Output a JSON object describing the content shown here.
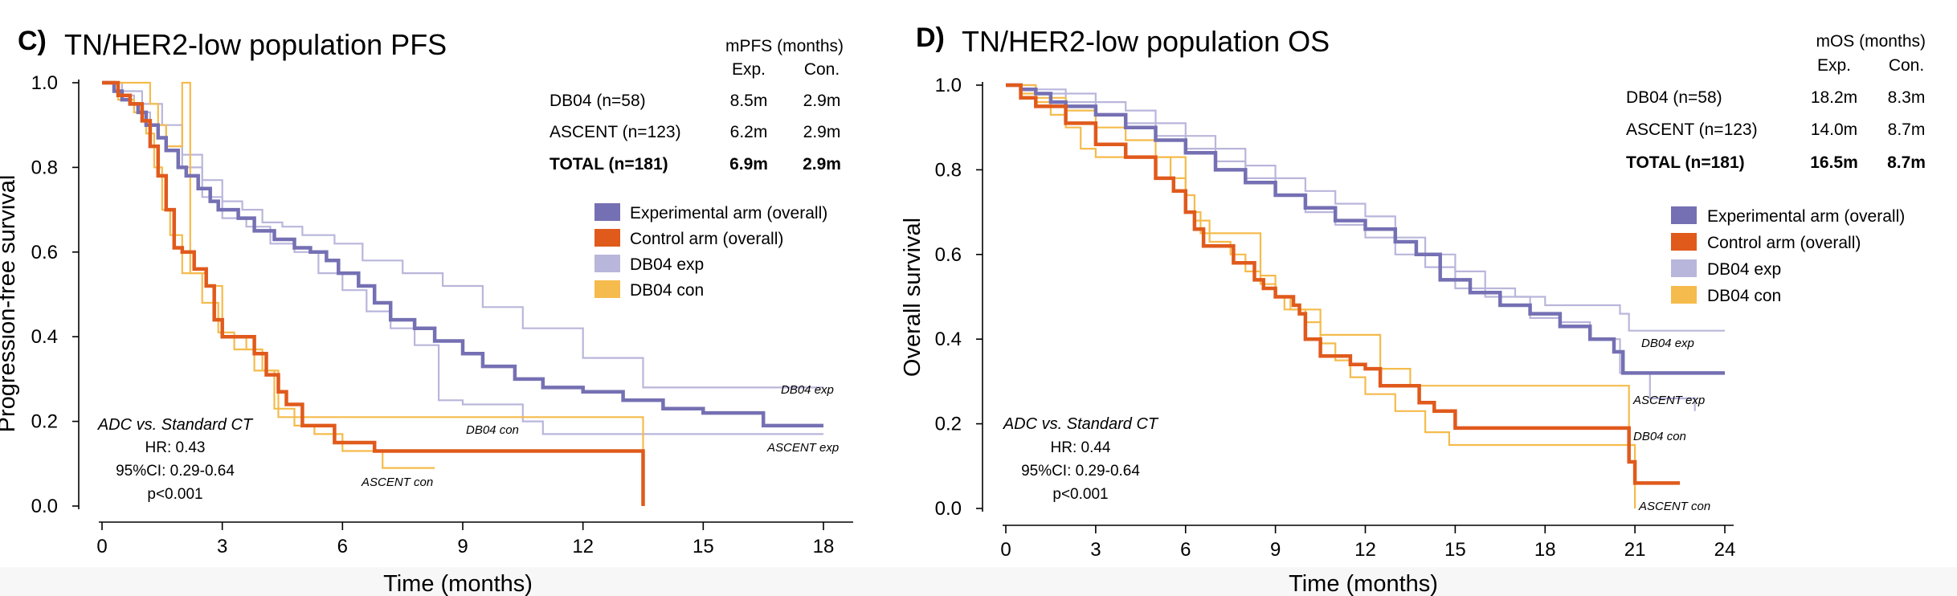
{
  "panels": [
    {
      "letter": "C)",
      "title": "TN/HER2-low population PFS",
      "table": {
        "title": "mPFS (months)",
        "col_exp": "Exp.",
        "col_con": "Con.",
        "rows": [
          {
            "label": "DB04 (n=58)",
            "exp": "8.5m",
            "con": "2.9m"
          },
          {
            "label": "ASCENT (n=123)",
            "exp": "6.2m",
            "con": "2.9m"
          },
          {
            "label": "TOTAL (n=181)",
            "exp": "6.9m",
            "con": "2.9m"
          }
        ]
      }
    },
    {
      "letter": "D)",
      "title": "TN/HER2-low population OS",
      "table": {
        "title": "mOS (months)",
        "col_exp": "Exp.",
        "col_con": "Con.",
        "rows": [
          {
            "label": "DB04 (n=58)",
            "exp": "18.2m",
            "con": "8.3m"
          },
          {
            "label": "ASCENT (n=123)",
            "exp": "14.0m",
            "con": "8.7m"
          },
          {
            "label": "TOTAL (n=181)",
            "exp": "16.5m",
            "con": "8.7m"
          }
        ]
      }
    }
  ],
  "colors": {
    "experimental_overall": "#7570b3",
    "control_overall": "#e05a1c",
    "experimental_arms": "#b9b6db",
    "control_arms": "#f5bb4c",
    "axis": "#000000"
  },
  "chart_data": [
    {
      "type": "line",
      "title": "TN/HER2-low population PFS",
      "xlabel": "Time  (months)",
      "ylabel": "Progression-free survival",
      "xlim": [
        0,
        18
      ],
      "ylim": [
        0,
        1.0
      ],
      "xticks": [
        0,
        3,
        6,
        9,
        12,
        15,
        18
      ],
      "yticks": [
        "0.0",
        "0.2",
        "0.4",
        "0.6",
        "0.8",
        "1.0"
      ],
      "grid": false,
      "legend_position": "top-right",
      "annotation": {
        "comparison": "ADC vs. Standard CT",
        "hr": "HR: 0.43",
        "ci": "95%CI: 0.29-0.64",
        "p": "p<0.001"
      },
      "series": [
        {
          "name": "Experimental arm (overall)",
          "key": "experimental_overall",
          "x": [
            0,
            0.3,
            0.5,
            0.7,
            0.9,
            1.1,
            1.4,
            1.6,
            1.9,
            2.1,
            2.4,
            2.7,
            2.9,
            3.4,
            3.8,
            4.3,
            4.8,
            5.2,
            5.6,
            5.9,
            6.4,
            6.8,
            7.2,
            7.8,
            8.3,
            9.0,
            9.5,
            10.3,
            11.0,
            12.0,
            13.0,
            14.0,
            15.0,
            16.5,
            18.0
          ],
          "y": [
            1.0,
            0.98,
            0.96,
            0.95,
            0.93,
            0.9,
            0.87,
            0.84,
            0.8,
            0.78,
            0.75,
            0.72,
            0.7,
            0.68,
            0.65,
            0.63,
            0.61,
            0.6,
            0.58,
            0.55,
            0.52,
            0.48,
            0.44,
            0.42,
            0.39,
            0.36,
            0.33,
            0.3,
            0.28,
            0.27,
            0.25,
            0.23,
            0.22,
            0.19,
            0.19
          ]
        },
        {
          "name": "Control arm (overall)",
          "key": "control_overall",
          "x": [
            0,
            0.4,
            0.7,
            1.0,
            1.2,
            1.4,
            1.6,
            1.8,
            2.0,
            2.3,
            2.6,
            2.8,
            3.0,
            3.2,
            3.8,
            4.1,
            4.4,
            4.6,
            5.0,
            5.8,
            6.8,
            8.0,
            11.0,
            13.5,
            13.5
          ],
          "y": [
            1.0,
            0.97,
            0.95,
            0.91,
            0.85,
            0.78,
            0.7,
            0.61,
            0.6,
            0.56,
            0.52,
            0.44,
            0.4,
            0.4,
            0.36,
            0.31,
            0.27,
            0.24,
            0.19,
            0.15,
            0.13,
            0.13,
            0.13,
            0.12,
            0.0
          ]
        },
        {
          "name": "DB04 exp",
          "key": "experimental_arms",
          "x": [
            0,
            0.5,
            1.0,
            1.5,
            2.0,
            2.5,
            3.0,
            3.5,
            4.0,
            4.5,
            5.0,
            5.8,
            6.5,
            7.5,
            8.5,
            9.5,
            10.5,
            12.0,
            13.5,
            14.5,
            18.0
          ],
          "y": [
            1.0,
            0.98,
            0.95,
            0.9,
            0.83,
            0.77,
            0.72,
            0.7,
            0.67,
            0.66,
            0.64,
            0.62,
            0.58,
            0.55,
            0.52,
            0.47,
            0.42,
            0.35,
            0.28,
            0.28,
            0.28
          ]
        },
        {
          "name": "ASCENT exp",
          "key": "experimental_arms",
          "x": [
            0,
            0.4,
            0.8,
            1.2,
            1.6,
            2.0,
            2.5,
            3.0,
            3.6,
            4.2,
            4.8,
            5.4,
            6.0,
            6.6,
            7.2,
            7.8,
            8.4,
            9.0,
            10.5,
            11.0,
            18.0
          ],
          "y": [
            1.0,
            0.97,
            0.93,
            0.9,
            0.85,
            0.8,
            0.73,
            0.68,
            0.66,
            0.62,
            0.6,
            0.55,
            0.51,
            0.46,
            0.42,
            0.38,
            0.25,
            0.24,
            0.2,
            0.17,
            0.17
          ]
        },
        {
          "name": "DB04 con",
          "key": "control_arms",
          "x": [
            0,
            0.6,
            1.0,
            1.2,
            1.4,
            1.6,
            2.0,
            2.2,
            2.6,
            3.0,
            3.6,
            4.0,
            4.4,
            5.0,
            6.0,
            9.0,
            13.5,
            13.5
          ],
          "y": [
            1.0,
            1.0,
            1.0,
            0.95,
            0.9,
            0.85,
            1.0,
            0.55,
            0.52,
            0.4,
            0.37,
            0.32,
            0.21,
            0.21,
            0.21,
            0.21,
            0.21,
            0.0
          ]
        },
        {
          "name": "ASCENT con",
          "key": "control_arms",
          "x": [
            0,
            0.4,
            0.8,
            1.1,
            1.3,
            1.5,
            1.7,
            2.0,
            2.5,
            2.9,
            3.3,
            3.8,
            4.3,
            4.8,
            5.3,
            6.0,
            7.0,
            8.3
          ],
          "y": [
            1.0,
            0.96,
            0.93,
            0.88,
            0.8,
            0.7,
            0.64,
            0.55,
            0.48,
            0.41,
            0.37,
            0.32,
            0.23,
            0.19,
            0.17,
            0.13,
            0.09,
            0.09
          ]
        }
      ]
    },
    {
      "type": "line",
      "title": "TN/HER2-low population OS",
      "xlabel": "Time  (months)",
      "ylabel": "Overall survival",
      "xlim": [
        0,
        24
      ],
      "ylim": [
        0,
        1.0
      ],
      "xticks": [
        0,
        3,
        6,
        9,
        12,
        15,
        18,
        21,
        24
      ],
      "yticks": [
        "0.0",
        "0.2",
        "0.4",
        "0.6",
        "0.8",
        "1.0"
      ],
      "grid": false,
      "legend_position": "top-right",
      "annotation": {
        "comparison": "ADC vs. Standard CT",
        "hr": "HR: 0.44",
        "ci": "95%CI: 0.29-0.64",
        "p": "p<0.001"
      },
      "series": [
        {
          "name": "Experimental arm (overall)",
          "key": "experimental_overall",
          "x": [
            0,
            0.5,
            1.0,
            1.5,
            2.0,
            3.0,
            4.0,
            5.0,
            6.0,
            7.0,
            8.0,
            9.0,
            10.0,
            11.0,
            12.0,
            13.0,
            13.7,
            14.5,
            15.5,
            16.5,
            17.5,
            18.5,
            19.5,
            20.3,
            20.6,
            24.0
          ],
          "y": [
            1.0,
            0.99,
            0.98,
            0.96,
            0.95,
            0.93,
            0.9,
            0.87,
            0.84,
            0.8,
            0.77,
            0.74,
            0.71,
            0.68,
            0.66,
            0.63,
            0.6,
            0.54,
            0.51,
            0.48,
            0.46,
            0.43,
            0.4,
            0.37,
            0.32,
            0.32
          ]
        },
        {
          "name": "Control arm (overall)",
          "key": "control_overall",
          "x": [
            0,
            0.5,
            1.0,
            2.0,
            3.0,
            4.0,
            5.0,
            5.6,
            6.0,
            6.3,
            6.6,
            7.2,
            7.6,
            8.0,
            8.3,
            8.6,
            9.0,
            9.6,
            9.8,
            10.0,
            10.5,
            11.5,
            12.0,
            12.5,
            13.8,
            14.3,
            15.0,
            17.0,
            20.6,
            20.8,
            21.0,
            22.5
          ],
          "y": [
            1.0,
            0.97,
            0.95,
            0.91,
            0.86,
            0.83,
            0.78,
            0.75,
            0.7,
            0.66,
            0.62,
            0.62,
            0.58,
            0.58,
            0.54,
            0.52,
            0.5,
            0.48,
            0.46,
            0.4,
            0.36,
            0.34,
            0.33,
            0.29,
            0.25,
            0.23,
            0.19,
            0.19,
            0.19,
            0.11,
            0.06,
            0.06
          ]
        },
        {
          "name": "DB04 exp",
          "key": "experimental_arms",
          "x": [
            0,
            1.0,
            2.0,
            3.0,
            4.0,
            5.0,
            6.0,
            7.0,
            8.0,
            9.0,
            10.0,
            11.0,
            12.0,
            13.0,
            14.0,
            15.0,
            16.0,
            17.0,
            18.0,
            20.5,
            20.8,
            24.0
          ],
          "y": [
            1.0,
            0.99,
            0.98,
            0.96,
            0.94,
            0.91,
            0.88,
            0.85,
            0.81,
            0.78,
            0.75,
            0.72,
            0.69,
            0.64,
            0.6,
            0.56,
            0.52,
            0.5,
            0.48,
            0.46,
            0.42,
            0.42
          ]
        },
        {
          "name": "ASCENT exp",
          "key": "experimental_arms",
          "x": [
            0,
            1.0,
            2.0,
            3.0,
            4.0,
            5.0,
            6.0,
            7.0,
            8.0,
            9.0,
            10.0,
            11.0,
            12.0,
            13.0,
            14.0,
            15.0,
            16.0,
            17.5,
            18.5,
            19.5,
            20.5,
            21.5,
            23.0
          ],
          "y": [
            1.0,
            0.98,
            0.96,
            0.93,
            0.91,
            0.88,
            0.85,
            0.82,
            0.78,
            0.74,
            0.7,
            0.67,
            0.64,
            0.6,
            0.57,
            0.52,
            0.5,
            0.45,
            0.44,
            0.4,
            0.32,
            0.26,
            0.23
          ]
        },
        {
          "name": "DB04 con",
          "key": "control_arms",
          "x": [
            0,
            0.5,
            1.0,
            1.5,
            2.0,
            2.5,
            3.0,
            5.0,
            6.0,
            6.5,
            8.0,
            8.5,
            9.0,
            9.3,
            10.5,
            11.0,
            12.5,
            13.5,
            17.0,
            20.5,
            20.8,
            21.0
          ],
          "y": [
            1.0,
            0.98,
            0.96,
            0.93,
            0.9,
            0.85,
            0.83,
            0.83,
            0.7,
            0.65,
            0.65,
            0.55,
            0.5,
            0.47,
            0.41,
            0.41,
            0.33,
            0.29,
            0.29,
            0.29,
            0.15,
            0.15
          ]
        },
        {
          "name": "ASCENT con",
          "key": "control_arms",
          "x": [
            0,
            1.0,
            2.0,
            3.0,
            4.0,
            5.0,
            5.5,
            6.0,
            6.3,
            6.8,
            7.5,
            8.0,
            8.5,
            9.0,
            9.5,
            10.0,
            10.5,
            11.0,
            11.5,
            12.0,
            13.0,
            14.0,
            14.8,
            18.0,
            21.0,
            21.0
          ],
          "y": [
            1.0,
            0.97,
            0.94,
            0.9,
            0.87,
            0.83,
            0.78,
            0.74,
            0.68,
            0.63,
            0.6,
            0.56,
            0.53,
            0.5,
            0.47,
            0.44,
            0.39,
            0.35,
            0.31,
            0.27,
            0.23,
            0.18,
            0.15,
            0.15,
            0.15,
            0.0
          ]
        }
      ]
    }
  ]
}
